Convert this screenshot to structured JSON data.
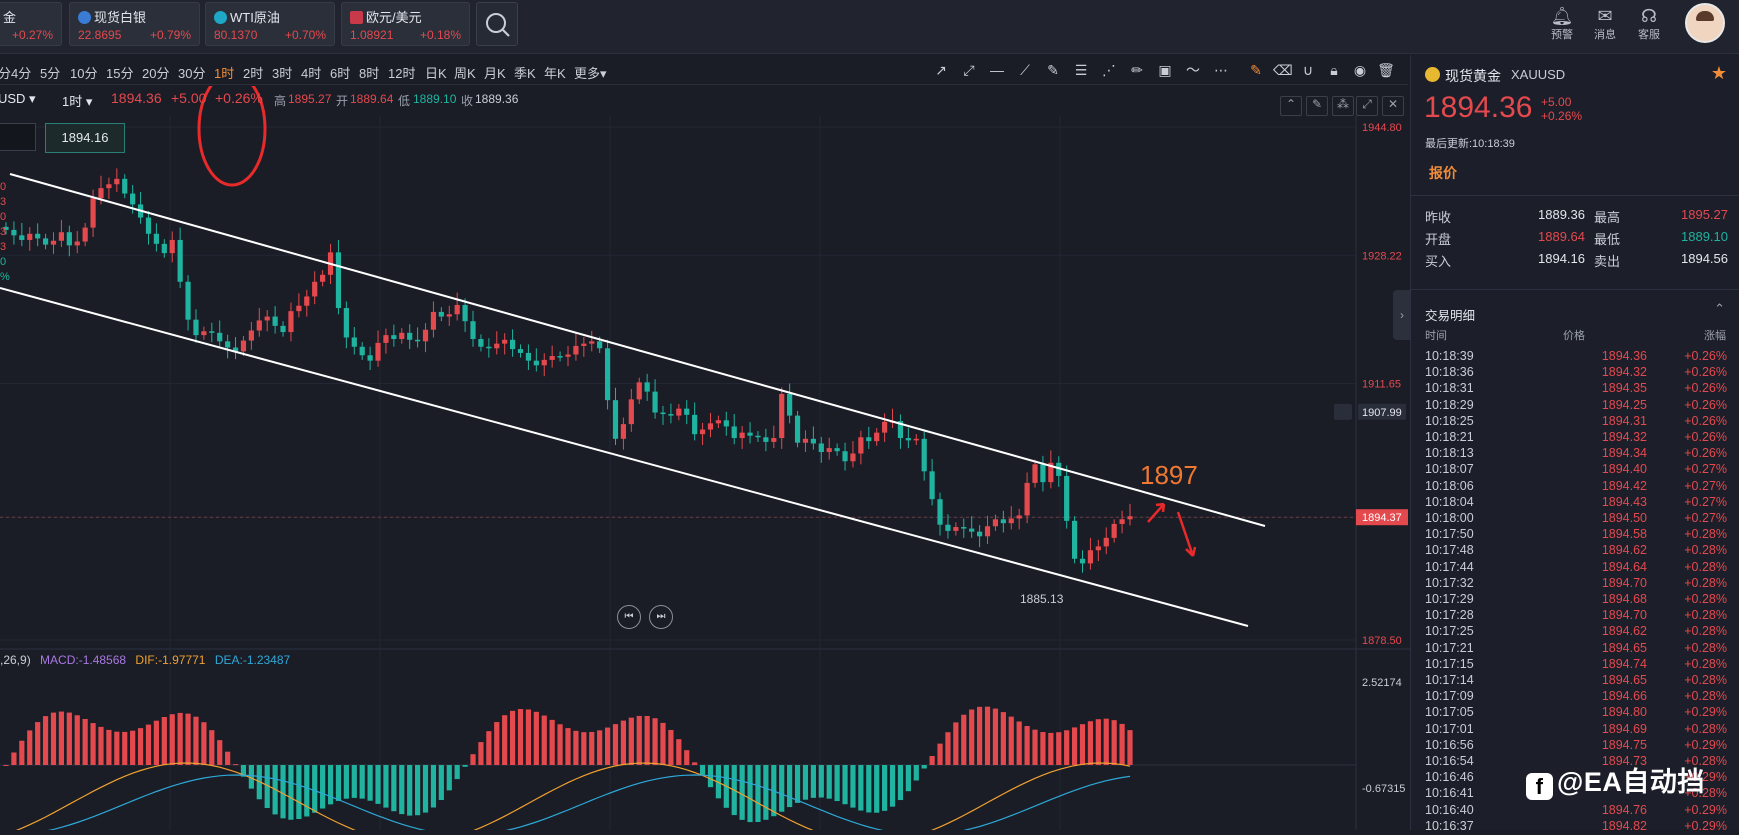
{
  "quotes": [
    {
      "name": "金",
      "price": "",
      "change": "+0.27%"
    },
    {
      "name": "现货白银",
      "price": "22.8695",
      "change": "+0.79%"
    },
    {
      "name": "WTI原油",
      "price": "80.1370",
      "change": "+0.70%"
    },
    {
      "name": "欧元/美元",
      "price": "1.08921",
      "change": "+0.18%"
    }
  ],
  "top_icons": [
    {
      "label": "预警",
      "icon": "bell-icon"
    },
    {
      "label": "消息",
      "icon": "mail-icon"
    },
    {
      "label": "客服",
      "icon": "headset-icon"
    }
  ],
  "timeframes": [
    "分",
    "4分",
    "5分",
    "10分",
    "15分",
    "20分",
    "30分",
    "1时",
    "2时",
    "3时",
    "4时",
    "6时",
    "8时",
    "12时",
    "日K",
    "周K",
    "月K",
    "季K",
    "年K",
    "更多▾"
  ],
  "active_timeframe": "1时",
  "info_bar": {
    "symbol": "USD ▾",
    "period": "1时 ▾",
    "price": "1894.36",
    "change": "+5.00",
    "pct": "+0.26%",
    "high_label": "高",
    "high": "1895.27",
    "open_label": "开",
    "open": "1889.64",
    "low_label": "低",
    "low": "1889.10",
    "close_label": "收",
    "close": "1889.36"
  },
  "crosshair_box": "1894.16",
  "chart": {
    "price_axis": [
      "1944.80",
      "1928.22",
      "1911.65",
      "1878.50"
    ],
    "marked_level": "1907.99",
    "current_price": "1894.37",
    "low_label": "1885.13",
    "annotation": "1897",
    "macd_header": {
      "params": ",26,9)",
      "macd": "MACD:-1.48568",
      "dif": "DIF:-1.97771",
      "dea": "DEA:-1.23487"
    },
    "macd_axis": [
      "2.52174",
      "-0.67315"
    ],
    "colors": {
      "up": "#e4494e",
      "down": "#1fb3a0",
      "channel": "#ffffff",
      "dif": "#f0a030",
      "dea": "#2ea8d8",
      "annotation": "#f07830",
      "highlight_circle": "#e82a2a"
    },
    "left_edge_values": [
      "0",
      "3",
      "0",
      "3",
      "3",
      "0",
      "%"
    ]
  },
  "chart_data": {
    "type": "candlestick",
    "title": "XAUUSD 1时",
    "ylim": [
      1878.5,
      1944.8
    ],
    "x_start": "",
    "values": [
      1931.5,
      1930.8,
      1930.2,
      1931.0,
      1930.4,
      1929.6,
      1930.1,
      1931.2,
      1929.5,
      1930.0,
      1931.8,
      1935.6,
      1936.9,
      1937.4,
      1938.1,
      1936.2,
      1934.8,
      1933.1,
      1931.0,
      1929.7,
      1928.5,
      1930.2,
      1924.8,
      1919.9,
      1917.9,
      1918.4,
      1918.2,
      1917.1,
      1916.3,
      1915.8,
      1917.2,
      1918.5,
      1919.8,
      1920.3,
      1919.1,
      1918.3,
      1921.0,
      1921.7,
      1922.9,
      1924.8,
      1925.7,
      1928.6,
      1921.4,
      1917.6,
      1916.4,
      1915.3,
      1914.6,
      1916.9,
      1917.9,
      1917.4,
      1918.2,
      1917.3,
      1917.1,
      1918.6,
      1920.9,
      1920.3,
      1920.6,
      1921.8,
      1919.7,
      1917.4,
      1916.4,
      1916.2,
      1916.8,
      1917.3,
      1916.1,
      1915.6,
      1914.6,
      1914.0,
      1914.7,
      1915.2,
      1915.1,
      1915.4,
      1916.5,
      1916.8,
      1917.1,
      1916.2,
      1909.5,
      1904.5,
      1906.4,
      1909.6,
      1911.8,
      1910.6,
      1907.9,
      1907.7,
      1907.5,
      1908.4,
      1907.6,
      1905.1,
      1905.7,
      1906.5,
      1906.9,
      1906.1,
      1904.6,
      1905.3,
      1904.9,
      1904.7,
      1904.1,
      1904.6,
      1910.3,
      1907.5,
      1904.0,
      1904.5,
      1903.9,
      1902.8,
      1903.3,
      1902.9,
      1901.6,
      1902.6,
      1904.7,
      1904.2,
      1905.3,
      1906.7,
      1906.8,
      1904.6,
      1904.3,
      1904.5,
      1900.3,
      1896.7,
      1893.4,
      1892.6,
      1893.1,
      1892.9,
      1892.5,
      1891.9,
      1893.2,
      1894.1,
      1893.6,
      1894.2,
      1894.6,
      1898.8,
      1901.2,
      1898.9,
      1901.4,
      1899.7,
      1893.9,
      1889.0,
      1888.4,
      1890.1,
      1890.6,
      1891.7,
      1893.5,
      1894.1,
      1894.5
    ],
    "series": [
      {
        "name": "MACD",
        "values": []
      },
      {
        "name": "DIF",
        "values": []
      },
      {
        "name": "DEA",
        "values": []
      }
    ]
  },
  "sidebar": {
    "name": "现货黄金",
    "code": "XAUUSD",
    "price": "1894.36",
    "change": "+5.00",
    "pct": "+0.26%",
    "updated": "最后更新:10:18:39",
    "tab": "报价",
    "stats": [
      {
        "k1": "昨收",
        "v1": "1889.36",
        "k2": "最高",
        "v2": "1895.27"
      },
      {
        "k1": "开盘",
        "v1": "1889.64",
        "k2": "最低",
        "v2": "1889.10"
      },
      {
        "k1": "买入",
        "v1": "1894.16",
        "k2": "卖出",
        "v2": "1894.56"
      }
    ],
    "trades_title": "交易明细",
    "trade_headers": [
      "时间",
      "价格",
      "涨幅"
    ],
    "trades": [
      [
        "10:18:39",
        "1894.36",
        "+0.26%"
      ],
      [
        "10:18:36",
        "1894.32",
        "+0.26%"
      ],
      [
        "10:18:31",
        "1894.35",
        "+0.26%"
      ],
      [
        "10:18:29",
        "1894.25",
        "+0.26%"
      ],
      [
        "10:18:25",
        "1894.31",
        "+0.26%"
      ],
      [
        "10:18:21",
        "1894.32",
        "+0.26%"
      ],
      [
        "10:18:13",
        "1894.34",
        "+0.26%"
      ],
      [
        "10:18:07",
        "1894.40",
        "+0.27%"
      ],
      [
        "10:18:06",
        "1894.42",
        "+0.27%"
      ],
      [
        "10:18:04",
        "1894.43",
        "+0.27%"
      ],
      [
        "10:18:00",
        "1894.50",
        "+0.27%"
      ],
      [
        "10:17:50",
        "1894.58",
        "+0.28%"
      ],
      [
        "10:17:48",
        "1894.62",
        "+0.28%"
      ],
      [
        "10:17:44",
        "1894.64",
        "+0.28%"
      ],
      [
        "10:17:32",
        "1894.70",
        "+0.28%"
      ],
      [
        "10:17:29",
        "1894.68",
        "+0.28%"
      ],
      [
        "10:17:28",
        "1894.70",
        "+0.28%"
      ],
      [
        "10:17:25",
        "1894.62",
        "+0.28%"
      ],
      [
        "10:17:21",
        "1894.65",
        "+0.28%"
      ],
      [
        "10:17:15",
        "1894.74",
        "+0.28%"
      ],
      [
        "10:17:14",
        "1894.65",
        "+0.28%"
      ],
      [
        "10:17:09",
        "1894.66",
        "+0.28%"
      ],
      [
        "10:17:05",
        "1894.80",
        "+0.29%"
      ],
      [
        "10:17:01",
        "1894.69",
        "+0.28%"
      ],
      [
        "10:16:56",
        "1894.75",
        "+0.29%"
      ],
      [
        "10:16:54",
        "1894.73",
        "+0.28%"
      ],
      [
        "10:16:46",
        "",
        "+0.29%"
      ],
      [
        "10:16:41",
        "",
        "+0.28%"
      ],
      [
        "10:16:40",
        "1894.76",
        "+0.29%"
      ],
      [
        "10:16:37",
        "1894.82",
        "+0.29%"
      ]
    ]
  },
  "watermark": "@EA自动挡"
}
